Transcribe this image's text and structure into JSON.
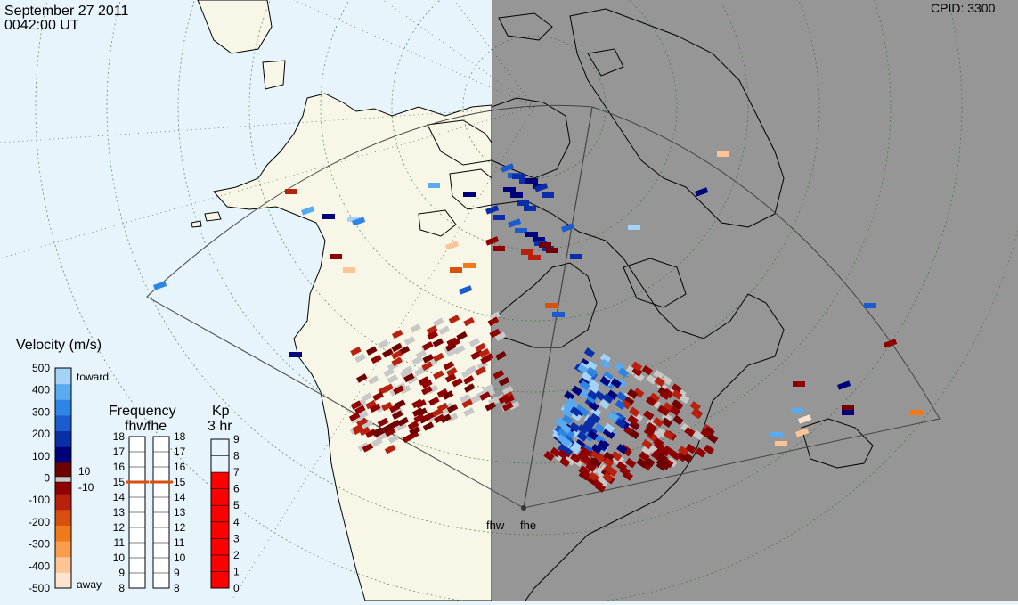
{
  "header": {
    "date": "September 27 2011",
    "time": "0042:00 UT",
    "cpid": "CPID:  3300"
  },
  "radars": {
    "west_label": "fhw",
    "east_label": "fhe"
  },
  "velocity_scale": {
    "title": "Velocity (m/s)",
    "ticks": [
      "500",
      "400",
      "300",
      "200",
      "100",
      "0",
      "-100",
      "-200",
      "-300",
      "-400",
      "-500"
    ],
    "toward_label": "toward",
    "away_label": "away",
    "threshold_pos": "10",
    "threshold_neg": "-10",
    "colors": [
      "#fde4cf",
      "#fdc596",
      "#fb9b4c",
      "#f07a1a",
      "#d84f0e",
      "#b8210e",
      "#8f0000",
      "#6e0000",
      "#00007a",
      "#0a2ea8",
      "#1a5bd0",
      "#2d86e6",
      "#5aaaf0",
      "#a5d2f7"
    ]
  },
  "frequency_scale": {
    "title": "Frequency",
    "subtitle": "fhwfhe",
    "ticks": [
      "18",
      "17",
      "16",
      "15",
      "14",
      "13",
      "12",
      "11",
      "10",
      "9",
      "8"
    ],
    "fhw_value": 15,
    "fhe_value": 15
  },
  "kp_scale": {
    "title": "Kp",
    "subtitle": "3 hr",
    "ticks": [
      "9",
      "8",
      "7",
      "6",
      "5",
      "4",
      "3",
      "2",
      "1",
      "0"
    ],
    "value": 7
  },
  "colors": {
    "ocean": "#e8f4fb",
    "land": "#f8f6e6",
    "night": "#969696",
    "ground_scatter": "#c8c8c8"
  }
}
